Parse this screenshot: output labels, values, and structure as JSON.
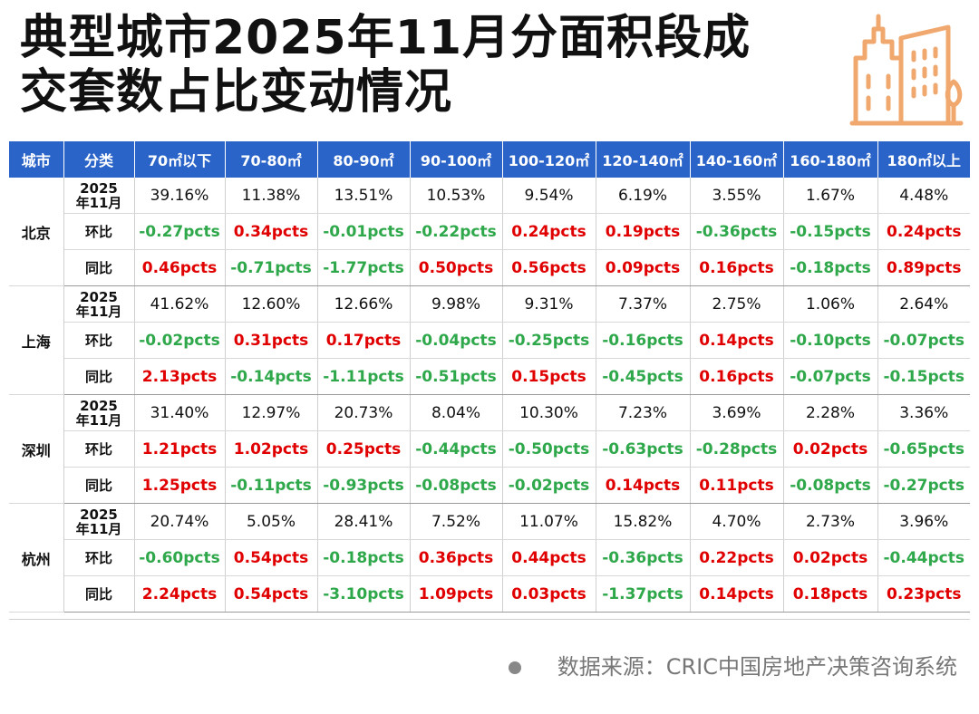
{
  "title": {
    "line1": "典型城市2025年11月分面积段成",
    "line2": "交套数占比变动情况"
  },
  "logo_icon": "city-buildings-icon",
  "colors": {
    "header_bg": "#2b64c9",
    "positive": "#e00000",
    "negative": "#2ea84a",
    "logo": "#f0a86e"
  },
  "table": {
    "headers": [
      "城市",
      "分类",
      "70㎡以下",
      "70-80㎡",
      "80-90㎡",
      "90-100㎡",
      "100-120㎡",
      "120-140㎡",
      "140-160㎡",
      "160-180㎡",
      "180㎡以上"
    ],
    "cities": [
      {
        "name": "北京",
        "rows": [
          {
            "category": "2025\n年11月",
            "values": [
              "39.16%",
              "11.38%",
              "13.51%",
              "10.53%",
              "9.54%",
              "6.19%",
              "3.55%",
              "1.67%",
              "4.48%"
            ]
          },
          {
            "category": "环比",
            "values": [
              "-0.27pcts",
              "0.34pcts",
              "-0.01pcts",
              "-0.22pcts",
              "0.24pcts",
              "0.19pcts",
              "-0.36pcts",
              "-0.15pcts",
              "0.24pcts"
            ]
          },
          {
            "category": "同比",
            "values": [
              "0.46pcts",
              "-0.71pcts",
              "-1.77pcts",
              "0.50pcts",
              "0.56pcts",
              "0.09pcts",
              "0.16pcts",
              "-0.18pcts",
              "0.89pcts"
            ]
          }
        ]
      },
      {
        "name": "上海",
        "rows": [
          {
            "category": "2025\n年11月",
            "values": [
              "41.62%",
              "12.60%",
              "12.66%",
              "9.98%",
              "9.31%",
              "7.37%",
              "2.75%",
              "1.06%",
              "2.64%"
            ]
          },
          {
            "category": "环比",
            "values": [
              "-0.02pcts",
              "0.31pcts",
              "0.17pcts",
              "-0.04pcts",
              "-0.25pcts",
              "-0.16pcts",
              "0.14pcts",
              "-0.10pcts",
              "-0.07pcts"
            ]
          },
          {
            "category": "同比",
            "values": [
              "2.13pcts",
              "-0.14pcts",
              "-1.11pcts",
              "-0.51pcts",
              "0.15pcts",
              "-0.45pcts",
              "0.16pcts",
              "-0.07pcts",
              "-0.15pcts"
            ]
          }
        ]
      },
      {
        "name": "深圳",
        "rows": [
          {
            "category": "2025\n年11月",
            "values": [
              "31.40%",
              "12.97%",
              "20.73%",
              "8.04%",
              "10.30%",
              "7.23%",
              "3.69%",
              "2.28%",
              "3.36%"
            ]
          },
          {
            "category": "环比",
            "values": [
              "1.21pcts",
              "1.02pcts",
              "0.25pcts",
              "-0.44pcts",
              "-0.50pcts",
              "-0.63pcts",
              "-0.28pcts",
              "0.02pcts",
              "-0.65pcts"
            ]
          },
          {
            "category": "同比",
            "values": [
              "1.25pcts",
              "-0.11pcts",
              "-0.93pcts",
              "-0.08pcts",
              "-0.02pcts",
              "0.14pcts",
              "0.11pcts",
              "-0.08pcts",
              "-0.27pcts"
            ]
          }
        ]
      },
      {
        "name": "杭州",
        "rows": [
          {
            "category": "2025\n年11月",
            "values": [
              "20.74%",
              "5.05%",
              "28.41%",
              "7.52%",
              "11.07%",
              "15.82%",
              "4.70%",
              "2.73%",
              "3.96%"
            ]
          },
          {
            "category": "环比",
            "values": [
              "-0.60pcts",
              "0.54pcts",
              "-0.18pcts",
              "0.36pcts",
              "0.44pcts",
              "-0.36pcts",
              "0.22pcts",
              "0.02pcts",
              "-0.44pcts"
            ]
          },
          {
            "category": "同比",
            "values": [
              "2.24pcts",
              "0.54pcts",
              "-3.10pcts",
              "1.09pcts",
              "0.03pcts",
              "-1.37pcts",
              "0.14pcts",
              "0.18pcts",
              "0.23pcts"
            ]
          }
        ]
      }
    ]
  },
  "source": "数据来源：CRIC中国房地产决策咨询系统"
}
